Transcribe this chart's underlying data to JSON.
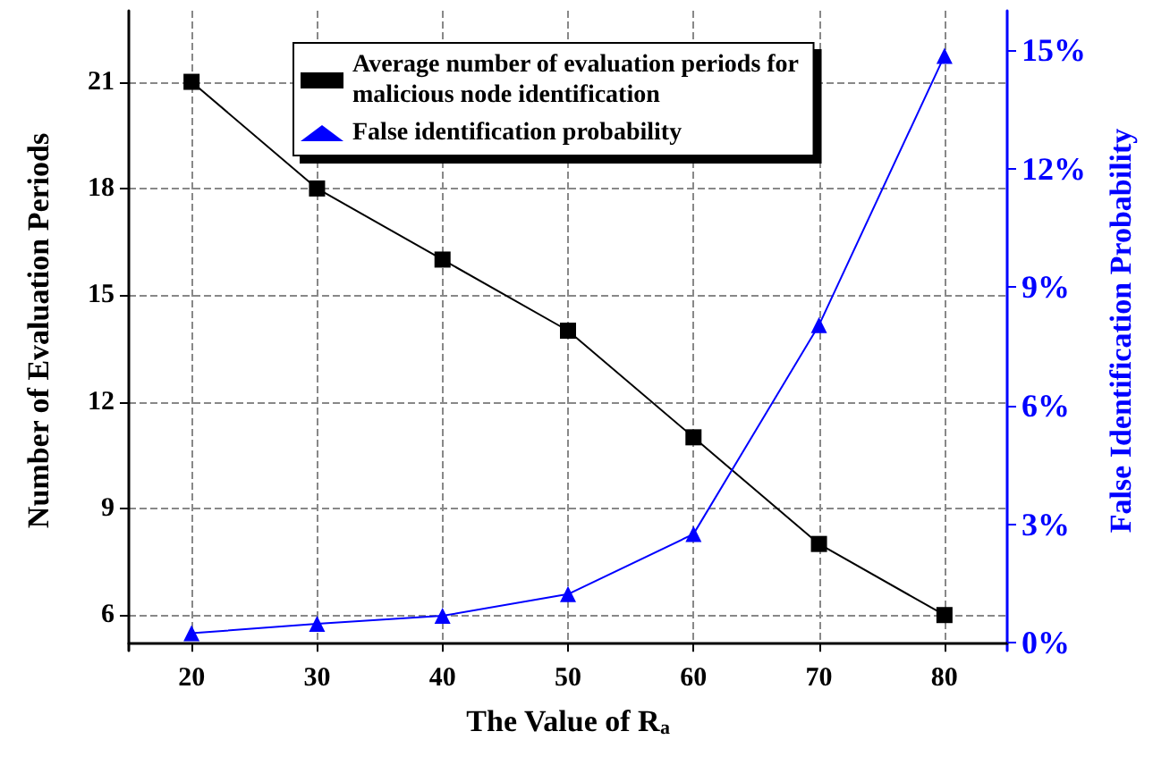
{
  "chart_data": {
    "type": "line",
    "xlabel": "The Value of R$_{a}$",
    "ylabel": "Number of Evaluation Periods",
    "y2label": "False Identification Probability",
    "x": [
      20,
      30,
      40,
      50,
      60,
      70,
      80
    ],
    "series": [
      {
        "name": "Average number of evaluation periods for malicious node identification",
        "color": "#000000",
        "marker": "square",
        "values": [
          21,
          18,
          16,
          14,
          11,
          8,
          6
        ]
      },
      {
        "name": "False identification probability",
        "color": "#0000ff",
        "marker": "triangle",
        "axis": "y2",
        "values": [
          0.24,
          0.48,
          0.68,
          1.23,
          2.75,
          8.04,
          14.86
        ]
      }
    ],
    "xlim": [
      15,
      85
    ],
    "xticks": [
      20,
      30,
      40,
      50,
      60,
      70,
      80
    ],
    "ylim": [
      5,
      23
    ],
    "yticks": [
      6,
      9,
      12,
      15,
      18,
      21
    ],
    "y2lim": [
      -0.2,
      16
    ],
    "y2ticks": [
      {
        "value": 0,
        "label": "0%"
      },
      {
        "value": 3,
        "label": "3%"
      },
      {
        "value": 6,
        "label": "6%"
      },
      {
        "value": 9,
        "label": "9%"
      },
      {
        "value": 12,
        "label": "12%"
      },
      {
        "value": 15,
        "label": "15%"
      }
    ],
    "grid": true,
    "legend": "top",
    "line_style": "solid"
  }
}
